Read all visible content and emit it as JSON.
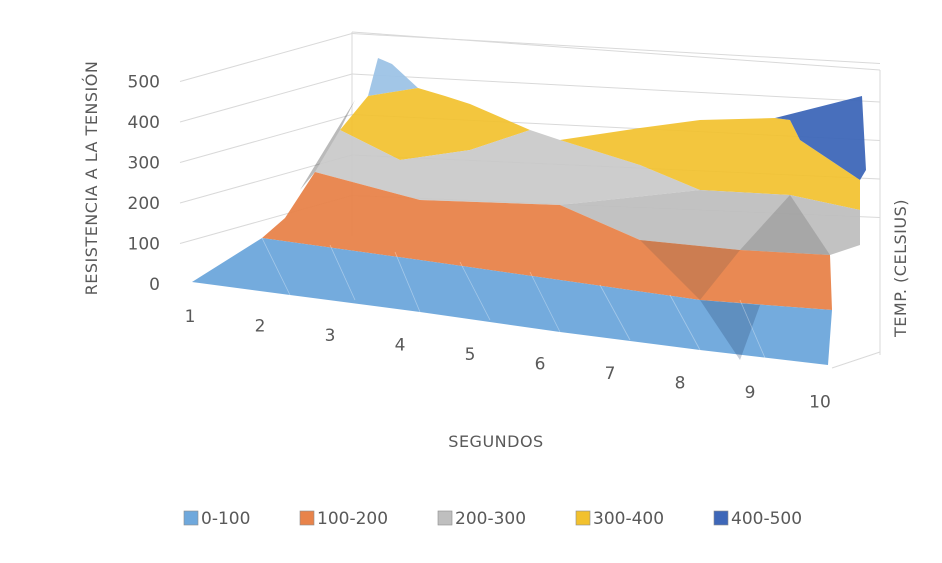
{
  "chart_data": {
    "type": "surface",
    "y_axis_title": "RESISTENCIA A LA TENSIÓN",
    "x_axis_title": "SEGUNDOS",
    "depth_axis_title": "TEMP. (CELSIUS)",
    "x_categories": [
      "1",
      "2",
      "3",
      "4",
      "5",
      "6",
      "7",
      "8",
      "9",
      "10"
    ],
    "y_ticks": [
      "0",
      "100",
      "200",
      "300",
      "400",
      "500"
    ],
    "ylim": [
      0,
      500
    ],
    "bands": [
      {
        "name": "0-100",
        "color": "#6FA8DC"
      },
      {
        "name": "100-200",
        "color": "#E8834A"
      },
      {
        "name": "200-300",
        "color": "#BFBFBF"
      },
      {
        "name": "300-400",
        "color": "#F2C12E"
      },
      {
        "name": "400-500",
        "color": "#3E67B8"
      }
    ],
    "legend_position": "bottom",
    "front_series_values": [
      0,
      100,
      120,
      110,
      100,
      95,
      90,
      80,
      70,
      60
    ],
    "back_series_values": [
      0,
      150,
      500,
      360,
      330,
      340,
      360,
      380,
      450,
      460
    ]
  }
}
